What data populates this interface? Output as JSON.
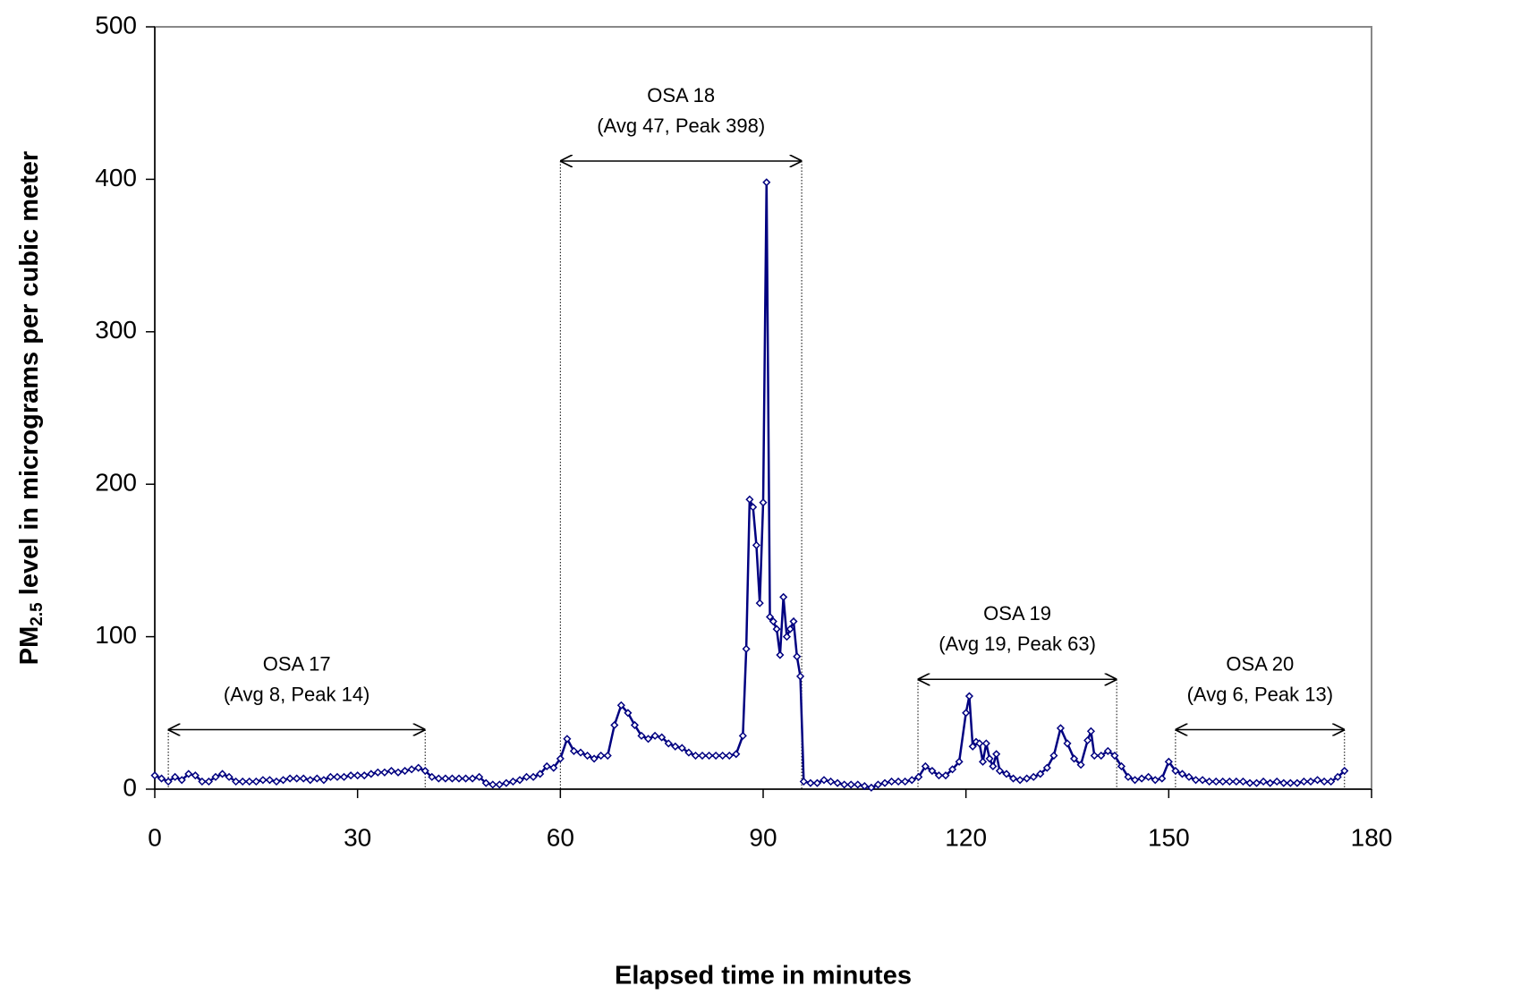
{
  "chart_data": {
    "type": "line",
    "xlabel": "Elapsed time in minutes",
    "ylabel": {
      "main": "PM",
      "sub": "2.5",
      "rest": " level in micrograms per cubic meter"
    },
    "xlim": [
      0,
      180
    ],
    "xticks": [
      0,
      30,
      60,
      90,
      120,
      150,
      180
    ],
    "ylim": [
      0,
      500
    ],
    "yticks": [
      0,
      100,
      200,
      300,
      400,
      500
    ],
    "x": [
      0,
      1,
      2,
      3,
      4,
      5,
      6,
      7,
      8,
      9,
      10,
      11,
      12,
      13,
      14,
      15,
      16,
      17,
      18,
      19,
      20,
      21,
      22,
      23,
      24,
      25,
      26,
      27,
      28,
      29,
      30,
      31,
      32,
      33,
      34,
      35,
      36,
      37,
      38,
      39,
      40,
      41,
      42,
      43,
      44,
      45,
      46,
      47,
      48,
      49,
      50,
      51,
      52,
      53,
      54,
      55,
      56,
      57,
      58,
      59,
      60,
      61,
      62,
      63,
      64,
      65,
      66,
      67,
      68,
      69,
      70,
      71,
      72,
      73,
      74,
      75,
      76,
      77,
      78,
      79,
      80,
      81,
      82,
      83,
      84,
      85,
      86,
      87,
      87.5,
      88,
      88.5,
      89,
      89.5,
      90,
      90.5,
      91,
      91.5,
      92,
      92.5,
      93,
      93.5,
      94,
      94.5,
      95,
      95.5,
      96,
      97,
      98,
      99,
      100,
      101,
      102,
      103,
      104,
      105,
      106,
      107,
      108,
      109,
      110,
      111,
      112,
      113,
      114,
      115,
      116,
      117,
      118,
      119,
      120,
      120.5,
      121,
      121.5,
      122,
      122.5,
      123,
      123.5,
      124,
      124.5,
      125,
      126,
      127,
      128,
      129,
      130,
      131,
      132,
      133,
      134,
      135,
      136,
      137,
      138,
      138.5,
      139,
      140,
      141,
      142,
      143,
      144,
      145,
      146,
      147,
      148,
      149,
      150,
      151,
      152,
      153,
      154,
      155,
      156,
      157,
      158,
      159,
      160,
      161,
      162,
      163,
      164,
      165,
      166,
      167,
      168,
      169,
      170,
      171,
      172,
      173,
      174,
      175,
      176
    ],
    "series": [
      {
        "name": "PM2.5",
        "color": "#000080",
        "values": [
          9,
          7,
          5,
          8,
          6,
          10,
          9,
          5,
          5,
          8,
          10,
          8,
          5,
          5,
          5,
          5,
          6,
          6,
          5,
          6,
          7,
          7,
          7,
          6,
          7,
          6,
          8,
          8,
          8,
          9,
          9,
          9,
          10,
          11,
          11,
          12,
          11,
          12,
          13,
          14,
          12,
          8,
          7,
          7,
          7,
          7,
          7,
          7,
          8,
          4,
          3,
          3,
          4,
          5,
          6,
          8,
          8,
          10,
          15,
          14,
          20,
          33,
          25,
          24,
          22,
          20,
          22,
          22,
          42,
          55,
          50,
          42,
          35,
          33,
          35,
          34,
          30,
          28,
          27,
          24,
          22,
          22,
          22,
          22,
          22,
          22,
          23,
          35,
          92,
          190,
          185,
          160,
          122,
          188,
          398,
          113,
          110,
          105,
          88,
          126,
          100,
          105,
          110,
          87,
          74,
          5,
          4,
          4,
          6,
          5,
          4,
          3,
          3,
          3,
          2,
          1,
          3,
          4,
          5,
          5,
          5,
          6,
          8,
          15,
          12,
          9,
          9,
          13,
          18,
          50,
          61,
          28,
          31,
          30,
          18,
          30,
          20,
          15,
          23,
          12,
          10,
          7,
          6,
          7,
          8,
          10,
          14,
          22,
          40,
          30,
          20,
          16,
          32,
          38,
          22,
          22,
          25,
          22,
          15,
          8,
          6,
          7,
          8,
          6,
          7,
          18,
          12,
          10,
          8,
          6,
          6,
          5,
          5,
          5,
          5,
          5,
          5,
          4,
          4,
          5,
          4,
          5,
          4,
          4,
          4,
          5,
          5,
          6,
          5,
          5,
          8,
          12
        ]
      }
    ],
    "annotations": [
      {
        "title": "OSA 17",
        "detail": "(Avg 8, Peak 14)",
        "x_range": [
          2,
          40
        ],
        "y": 39
      },
      {
        "title": "OSA 18",
        "detail": "(Avg 47, Peak 398)",
        "x_range": [
          60,
          95.7
        ],
        "y": 412
      },
      {
        "title": "OSA 19",
        "detail": "(Avg 19, Peak 63)",
        "x_range": [
          112.9,
          142.3
        ],
        "y": 72
      },
      {
        "title": "OSA 20",
        "detail": "(Avg 6, Peak 13)",
        "x_range": [
          151,
          176
        ],
        "y": 39
      }
    ]
  }
}
